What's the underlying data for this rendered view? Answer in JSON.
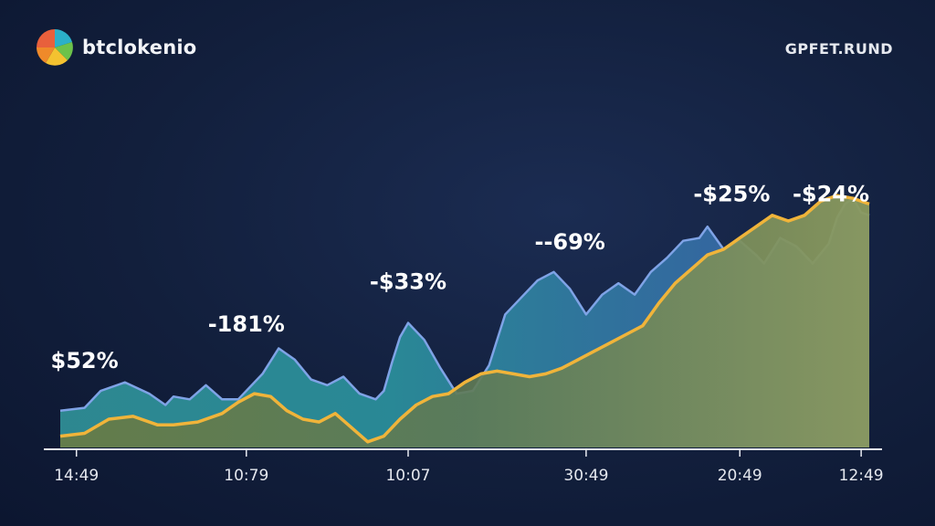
{
  "header": {
    "brand": "btclokenio",
    "right_label": "GPFET.RUND"
  },
  "colors": {
    "background": "#121f3c",
    "blue_line": "#7fa3e6",
    "gold_line": "#f0b43a",
    "teal_fill": "#2a8e9a",
    "olive_fill": "#7f8a55"
  },
  "chart_data": {
    "type": "area",
    "title": "",
    "xlabel": "",
    "ylabel": "",
    "xlim": [
      0,
      100
    ],
    "ylim": [
      0,
      100
    ],
    "categories": [
      "14:49",
      "10:79",
      "10:07",
      "30:49",
      "20:49",
      "12:49"
    ],
    "category_positions": [
      2,
      23,
      43,
      65,
      84,
      99
    ],
    "annotations": [
      {
        "text": "$52%",
        "x": 3,
        "y": 28
      },
      {
        "text": "-181%",
        "x": 23,
        "y": 41
      },
      {
        "text": "-$33%",
        "x": 43,
        "y": 56
      },
      {
        "text": "--69%",
        "x": 63,
        "y": 70
      },
      {
        "text": "-$25%",
        "x": 83,
        "y": 87
      },
      {
        "text": "-$24%",
        "x": 99,
        "y": 87
      }
    ],
    "series": [
      {
        "name": "blue",
        "x": [
          0,
          3,
          5,
          8,
          11,
          13,
          14,
          16,
          18,
          20,
          22,
          24,
          25,
          27,
          29,
          31,
          33,
          35,
          37,
          39,
          40,
          41,
          42,
          43,
          45,
          47,
          49,
          51,
          53,
          55,
          57,
          59,
          61,
          63,
          65,
          67,
          69,
          71,
          73,
          75,
          77,
          79,
          80,
          82,
          84,
          86,
          87,
          89,
          91,
          93,
          95,
          96,
          97,
          98,
          99,
          100
        ],
        "values": [
          13,
          14,
          20,
          23,
          19,
          15,
          18,
          17,
          22,
          17,
          17,
          23,
          26,
          35,
          31,
          24,
          22,
          25,
          19,
          17,
          20,
          30,
          39,
          44,
          38,
          28,
          19,
          20,
          29,
          47,
          53,
          59,
          62,
          56,
          47,
          54,
          58,
          54,
          62,
          67,
          73,
          74,
          78,
          70,
          73,
          68,
          65,
          74,
          71,
          65,
          72,
          81,
          86,
          88,
          83,
          82
        ]
      },
      {
        "name": "gold",
        "x": [
          0,
          3,
          6,
          9,
          12,
          14,
          17,
          20,
          22,
          24,
          26,
          28,
          30,
          32,
          34,
          36,
          38,
          40,
          42,
          44,
          46,
          48,
          50,
          52,
          54,
          56,
          58,
          60,
          62,
          64,
          66,
          68,
          70,
          72,
          74,
          76,
          78,
          80,
          82,
          84,
          86,
          88,
          90,
          92,
          94,
          96,
          98,
          100
        ],
        "values": [
          4,
          5,
          10,
          11,
          8,
          8,
          9,
          12,
          16,
          19,
          18,
          13,
          10,
          9,
          12,
          7,
          2,
          4,
          10,
          15,
          18,
          19,
          23,
          26,
          27,
          26,
          25,
          26,
          28,
          31,
          34,
          37,
          40,
          43,
          51,
          58,
          63,
          68,
          70,
          74,
          78,
          82,
          80,
          82,
          87,
          89,
          88,
          86
        ]
      }
    ]
  }
}
